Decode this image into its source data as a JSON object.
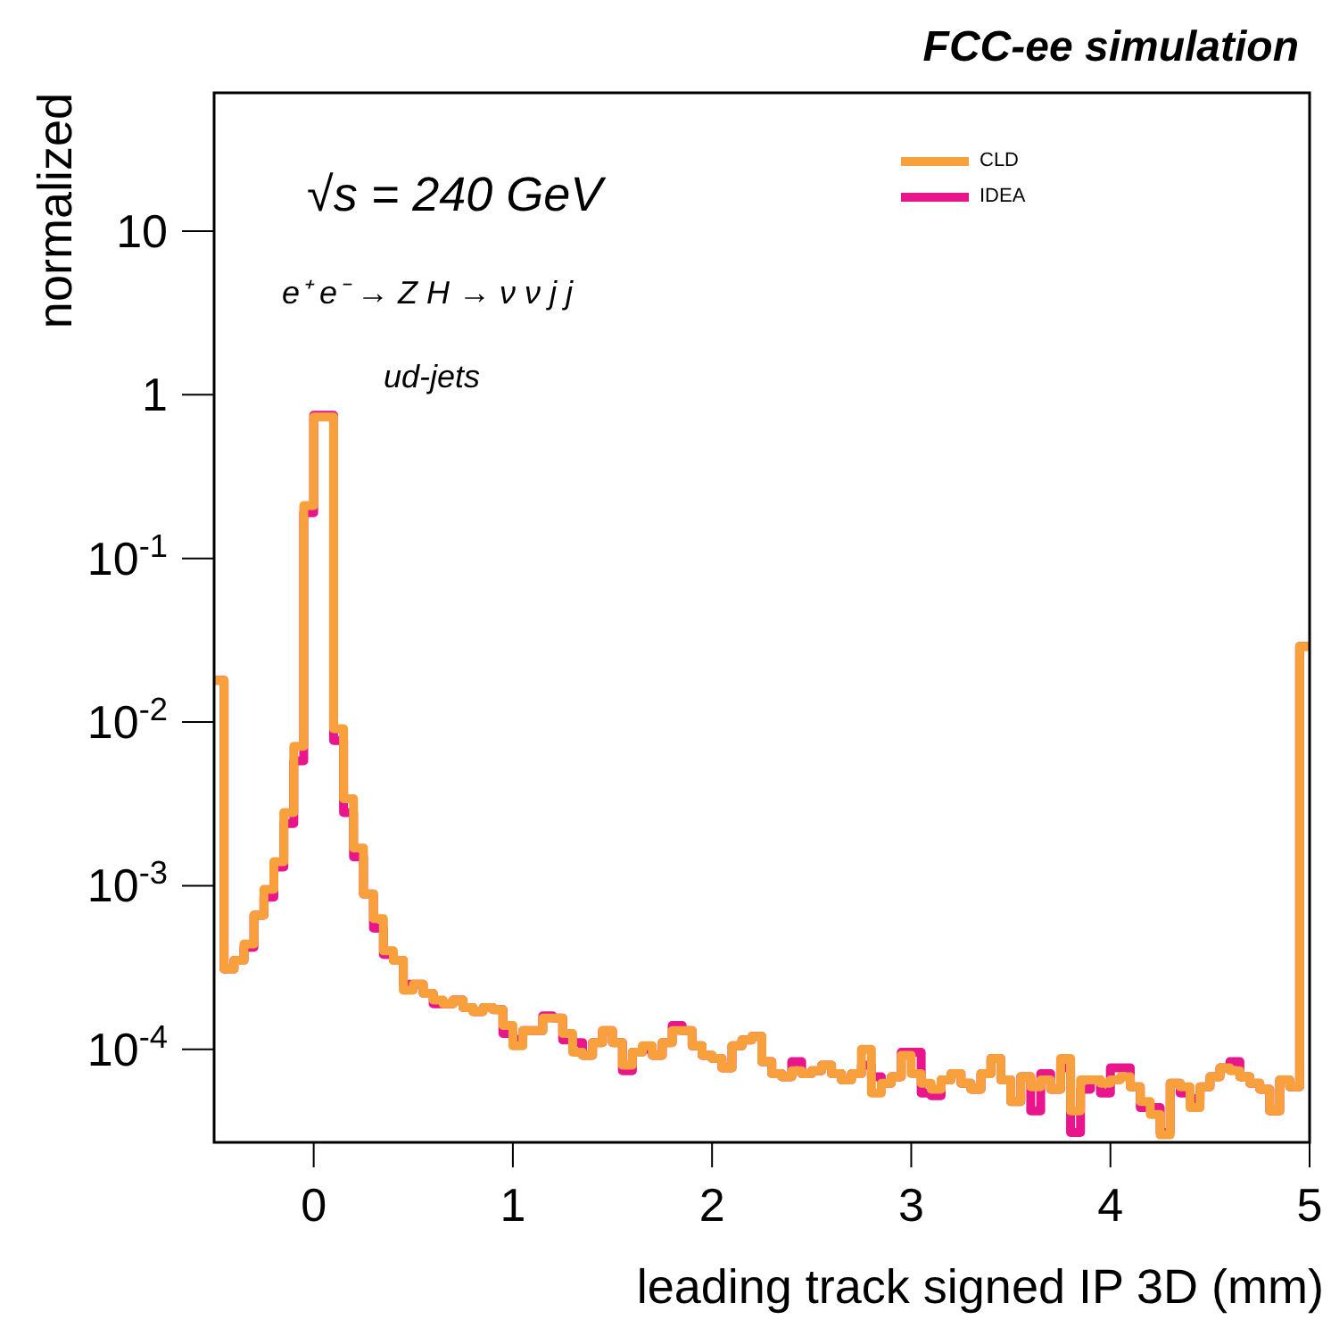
{
  "chart_data": {
    "type": "histogram",
    "title": "FCC-ee simulation",
    "xlabel": "leading track signed IP 3D (mm)",
    "ylabel": "normalized",
    "annotations": [
      "√s = 240 GeV",
      "e⁺ e⁻ → Z H  → ν ν j j",
      "ud-jets"
    ],
    "bins": [
      -0.5,
      -0.45,
      -0.4,
      -0.35,
      -0.3,
      -0.25,
      -0.2,
      -0.15,
      -0.1,
      -0.05,
      0,
      0.05,
      0.1,
      0.15,
      0.2,
      0.25,
      0.3,
      0.35,
      0.4,
      0.45,
      0.5,
      0.55,
      0.6,
      0.65,
      0.7,
      0.75,
      0.8,
      0.85,
      0.9,
      0.95,
      1,
      1.05,
      1.1,
      1.15,
      1.2,
      1.25,
      1.3,
      1.35,
      1.4,
      1.45,
      1.5,
      1.55,
      1.6,
      1.65,
      1.7,
      1.75,
      1.8,
      1.85,
      1.9,
      1.95,
      2,
      2.05,
      2.1,
      2.15,
      2.2,
      2.25,
      2.3,
      2.35,
      2.4,
      2.45,
      2.5,
      2.55,
      2.6,
      2.65,
      2.7,
      2.75,
      2.8,
      2.85,
      2.9,
      2.95,
      3,
      3.05,
      3.1,
      3.15,
      3.2,
      3.25,
      3.3,
      3.35,
      3.4,
      3.45,
      3.5,
      3.55,
      3.6,
      3.65,
      3.7,
      3.75,
      3.8,
      3.85,
      3.9,
      3.95,
      4,
      4.05,
      4.1,
      4.15,
      4.2,
      4.25,
      4.3,
      4.35,
      4.4,
      4.45,
      4.5,
      4.55,
      4.6,
      4.65,
      4.7,
      4.75,
      4.8,
      4.85,
      4.9,
      4.95,
      5
    ],
    "series": [
      {
        "name": "CLD",
        "color": "#f7a03c",
        "values": [
          0.018,
          0.00031,
          0.00035,
          0.00044,
          0.00066,
          0.00095,
          0.0014,
          0.0028,
          0.0071,
          0.21,
          0.73,
          0.73,
          0.0091,
          0.0034,
          0.0017,
          0.00089,
          0.00063,
          0.0004,
          0.00035,
          0.00023,
          0.00025,
          0.00022,
          0.0002,
          0.00019,
          0.0002,
          0.00018,
          0.00017,
          0.00018,
          0.000175,
          0.00014,
          0.000105,
          0.00013,
          0.00013,
          0.000155,
          0.000155,
          0.000125,
          9.6e-05,
          9.2e-05,
          0.00011,
          0.00013,
          0.00011,
          8e-05,
          9.6e-05,
          0.000105,
          9.2e-05,
          0.00011,
          0.00013,
          0.00013,
          0.000105,
          9.2e-05,
          8.8e-05,
          7.7e-05,
          0.000105,
          0.000114,
          0.00012,
          8.4e-05,
          7.1e-05,
          6.8e-05,
          7.4e-05,
          7.1e-05,
          7.4e-05,
          8e-05,
          7.1e-05,
          6.5e-05,
          7.1e-05,
          0.0001,
          5.4e-05,
          6.2e-05,
          6.8e-05,
          9.2e-05,
          7.1e-05,
          6.2e-05,
          5.7e-05,
          6.5e-05,
          7.1e-05,
          6.2e-05,
          5.7e-05,
          7.1e-05,
          8.8e-05,
          6.5e-05,
          4.8e-05,
          6.8e-05,
          5.9e-05,
          6.5e-05,
          5.7e-05,
          8.8e-05,
          4.2e-05,
          6.5e-05,
          6.5e-05,
          6.2e-05,
          6.5e-05,
          6.8e-05,
          5.9e-05,
          4.8e-05,
          4e-05,
          3e-05,
          6.2e-05,
          5.9e-05,
          4.4e-05,
          5.9e-05,
          6.8e-05,
          7.7e-05,
          7.4e-05,
          6.8e-05,
          6.2e-05,
          5.7e-05,
          4.2e-05,
          6.5e-05,
          5.9e-05,
          0.029
        ]
      },
      {
        "name": "IDEA",
        "color": "#e8158c",
        "values": [
          0.018,
          0.00031,
          0.00035,
          0.00042,
          0.00066,
          0.00085,
          0.0013,
          0.0024,
          0.0058,
          0.19,
          0.75,
          0.75,
          0.0077,
          0.0028,
          0.0015,
          0.00089,
          0.00055,
          0.00038,
          0.00035,
          0.00025,
          0.00025,
          0.00022,
          0.00019,
          0.00019,
          0.0002,
          0.00018,
          0.00017,
          0.00018,
          0.000175,
          0.000125,
          0.000115,
          0.00013,
          0.00013,
          0.00016,
          0.000155,
          0.000114,
          0.00011,
          9.2e-05,
          0.00011,
          0.00013,
          0.00011,
          7.4e-05,
          9.6e-05,
          0.0001,
          9.2e-05,
          0.00011,
          0.00014,
          0.00013,
          0.000105,
          9.2e-05,
          8.8e-05,
          7.7e-05,
          0.000105,
          0.000114,
          0.00012,
          8.4e-05,
          7.1e-05,
          6.8e-05,
          8.4e-05,
          7.1e-05,
          7.4e-05,
          8e-05,
          7.1e-05,
          6.5e-05,
          7.1e-05,
          8e-05,
          6.8e-05,
          6.2e-05,
          6.8e-05,
          9.6e-05,
          9.6e-05,
          5.4e-05,
          5.2e-05,
          6.5e-05,
          7.1e-05,
          6.2e-05,
          5.7e-05,
          7.1e-05,
          8.8e-05,
          6.5e-05,
          4.8e-05,
          6.8e-05,
          4.2e-05,
          7.1e-05,
          5.7e-05,
          7.7e-05,
          3.1e-05,
          5.7e-05,
          6.5e-05,
          5.4e-05,
          7.7e-05,
          7.7e-05,
          5.9e-05,
          4.4e-05,
          4.4e-05,
          3.1e-05,
          6.2e-05,
          5.4e-05,
          5e-05,
          5.9e-05,
          6.8e-05,
          7.7e-05,
          8.4e-05,
          6.8e-05,
          6.2e-05,
          5.7e-05,
          4.2e-05,
          6.5e-05,
          5.9e-05,
          0.029
        ]
      }
    ],
    "xlim": [
      -0.5,
      5
    ],
    "xticks": [
      0,
      1,
      2,
      3,
      4,
      5
    ],
    "ylim": [
      2.7e-05,
      70
    ],
    "yticks": [
      {
        "value": 0.0001,
        "label": "10$^{-4}$"
      },
      {
        "value": 0.001,
        "label": "10$^{-3}$"
      },
      {
        "value": 0.01,
        "label": "10$^{-2}$"
      },
      {
        "value": 0.1,
        "label": "10$^{-1}$"
      },
      1,
      10
    ],
    "log": "y",
    "legend": "top right",
    "marker": "none",
    "line_style": "solid"
  }
}
